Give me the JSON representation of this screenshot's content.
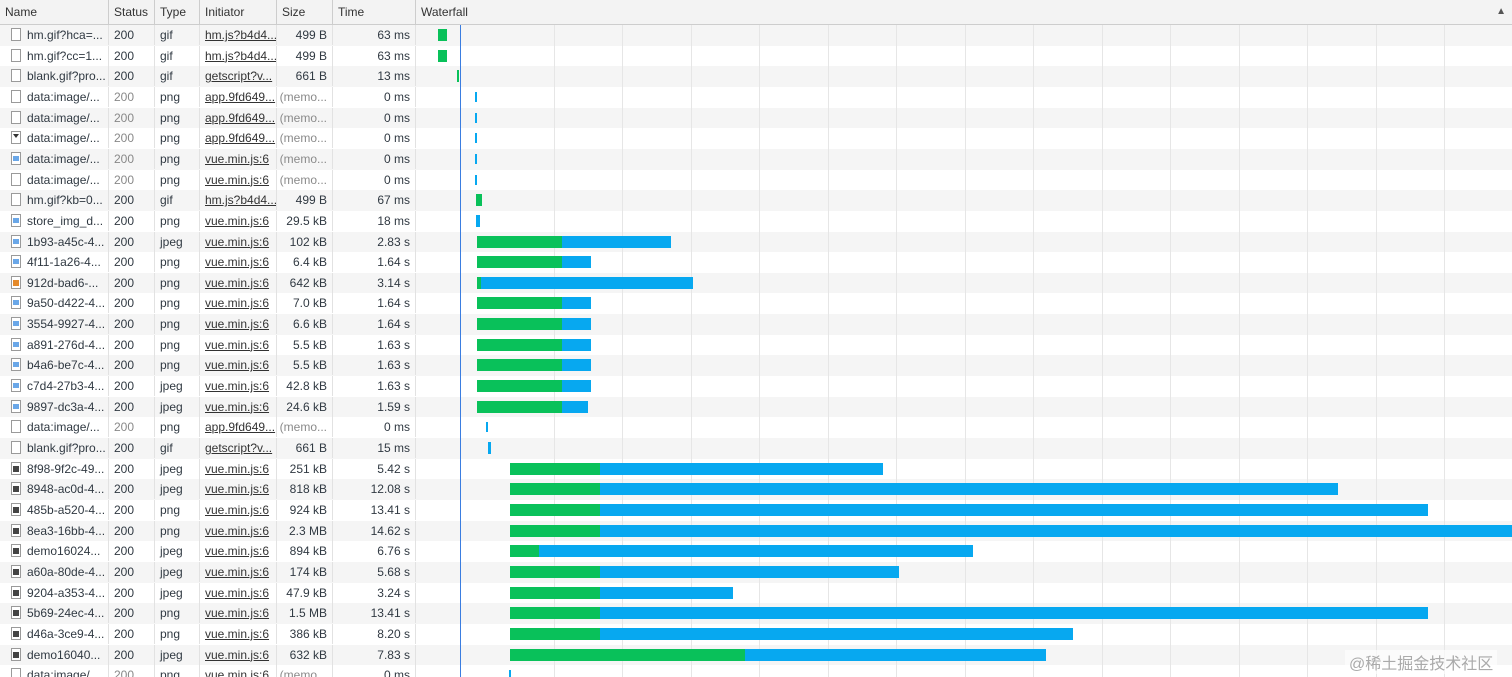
{
  "columns": {
    "name": "Name",
    "status": "Status",
    "type": "Type",
    "initiator": "Initiator",
    "size": "Size",
    "time": "Time",
    "waterfall": "Waterfall"
  },
  "watermark": "@稀土掘金技术社区",
  "colors": {
    "waiting": "#09c15a",
    "download": "#07a8f0",
    "dcl_line": "#3a7de0"
  },
  "rows": [
    {
      "name": "hm.gif?hca=...",
      "status": "200",
      "type": "gif",
      "initiator": "hm.js?b4d4...",
      "size": "499 B",
      "time": "63 ms",
      "icon": "file-icon",
      "wait": [
        0.02,
        0.028
      ],
      "dl": null
    },
    {
      "name": "hm.gif?cc=1...",
      "status": "200",
      "type": "gif",
      "initiator": "hm.js?b4d4...",
      "size": "499 B",
      "time": "63 ms",
      "icon": "file-icon",
      "wait": [
        0.02,
        0.028
      ],
      "dl": null
    },
    {
      "name": "blank.gif?pro...",
      "status": "200",
      "type": "gif",
      "initiator": "getscript?v...",
      "size": "661 B",
      "time": "13 ms",
      "icon": "file-icon",
      "wait": [
        0.037,
        0.039
      ],
      "dl": null
    },
    {
      "name": "data:image/...",
      "status": "200",
      "type": "png",
      "initiator": "app.9fd649...",
      "size": "(memo...",
      "time": "0 ms",
      "icon": "file-icon",
      "tick": 0.054
    },
    {
      "name": "data:image/...",
      "status": "200",
      "type": "png",
      "initiator": "app.9fd649...",
      "size": "(memo...",
      "time": "0 ms",
      "icon": "file-icon",
      "tick": 0.054
    },
    {
      "name": "data:image/...",
      "status": "200",
      "type": "png",
      "initiator": "app.9fd649...",
      "size": "(memo...",
      "time": "0 ms",
      "icon": "arrow-file-icon",
      "tick": 0.054
    },
    {
      "name": "data:image/...",
      "status": "200",
      "type": "png",
      "initiator": "vue.min.js:6",
      "size": "(memo...",
      "time": "0 ms",
      "icon": "image-file-icon",
      "tick": 0.054
    },
    {
      "name": "data:image/...",
      "status": "200",
      "type": "png",
      "initiator": "vue.min.js:6",
      "size": "(memo...",
      "time": "0 ms",
      "icon": "file-icon",
      "tick": 0.054
    },
    {
      "name": "hm.gif?kb=0...",
      "status": "200",
      "type": "gif",
      "initiator": "hm.js?b4d4...",
      "size": "499 B",
      "time": "67 ms",
      "icon": "file-icon",
      "wait": [
        0.055,
        0.06
      ],
      "dl": null
    },
    {
      "name": "store_img_d...",
      "status": "200",
      "type": "png",
      "initiator": "vue.min.js:6",
      "size": "29.5 kB",
      "time": "18 ms",
      "icon": "image-file-icon",
      "wait": null,
      "dl": [
        0.055,
        0.058
      ]
    },
    {
      "name": "1b93-a45c-4...",
      "status": "200",
      "type": "jpeg",
      "initiator": "vue.min.js:6",
      "size": "102 kB",
      "time": "2.83 s",
      "icon": "image-file-icon",
      "wait": [
        0.056,
        0.133
      ],
      "dl": [
        0.133,
        0.233
      ]
    },
    {
      "name": "4f11-1a26-4...",
      "status": "200",
      "type": "png",
      "initiator": "vue.min.js:6",
      "size": "6.4 kB",
      "time": "1.64 s",
      "icon": "image-file-icon",
      "wait": [
        0.056,
        0.133
      ],
      "dl": [
        0.133,
        0.16
      ]
    },
    {
      "name": "912d-bad6-...",
      "status": "200",
      "type": "png",
      "initiator": "vue.min.js:6",
      "size": "642 kB",
      "time": "3.14 s",
      "icon": "orange-file-icon",
      "wait": [
        0.056,
        0.059
      ],
      "dl": [
        0.059,
        0.253
      ]
    },
    {
      "name": "9a50-d422-4...",
      "status": "200",
      "type": "png",
      "initiator": "vue.min.js:6",
      "size": "7.0 kB",
      "time": "1.64 s",
      "icon": "image-file-icon",
      "wait": [
        0.056,
        0.133
      ],
      "dl": [
        0.133,
        0.16
      ]
    },
    {
      "name": "3554-9927-4...",
      "status": "200",
      "type": "png",
      "initiator": "vue.min.js:6",
      "size": "6.6 kB",
      "time": "1.64 s",
      "icon": "image-file-icon",
      "wait": [
        0.056,
        0.133
      ],
      "dl": [
        0.133,
        0.16
      ]
    },
    {
      "name": "a891-276d-4...",
      "status": "200",
      "type": "png",
      "initiator": "vue.min.js:6",
      "size": "5.5 kB",
      "time": "1.63 s",
      "icon": "image-file-icon",
      "wait": [
        0.056,
        0.133
      ],
      "dl": [
        0.133,
        0.16
      ]
    },
    {
      "name": "b4a6-be7c-4...",
      "status": "200",
      "type": "png",
      "initiator": "vue.min.js:6",
      "size": "5.5 kB",
      "time": "1.63 s",
      "icon": "image-file-icon",
      "wait": [
        0.056,
        0.133
      ],
      "dl": [
        0.133,
        0.16
      ]
    },
    {
      "name": "c7d4-27b3-4...",
      "status": "200",
      "type": "jpeg",
      "initiator": "vue.min.js:6",
      "size": "42.8 kB",
      "time": "1.63 s",
      "icon": "image-file-icon",
      "wait": [
        0.056,
        0.133
      ],
      "dl": [
        0.133,
        0.16
      ]
    },
    {
      "name": "9897-dc3a-4...",
      "status": "200",
      "type": "jpeg",
      "initiator": "vue.min.js:6",
      "size": "24.6 kB",
      "time": "1.59 s",
      "icon": "image-file-icon",
      "wait": [
        0.056,
        0.133
      ],
      "dl": [
        0.133,
        0.157
      ]
    },
    {
      "name": "data:image/...",
      "status": "200",
      "type": "png",
      "initiator": "app.9fd649...",
      "size": "(memo...",
      "time": "0 ms",
      "icon": "file-icon",
      "tick": 0.064
    },
    {
      "name": "blank.gif?pro...",
      "status": "200",
      "type": "gif",
      "initiator": "getscript?v...",
      "size": "661 B",
      "time": "15 ms",
      "icon": "file-icon",
      "wait": null,
      "dl": [
        0.066,
        0.068
      ]
    },
    {
      "name": "8f98-9f2c-49...",
      "status": "200",
      "type": "jpeg",
      "initiator": "vue.min.js:6",
      "size": "251 kB",
      "time": "5.42 s",
      "icon": "dark-file-icon",
      "wait": [
        0.086,
        0.168
      ],
      "dl": [
        0.168,
        0.426
      ]
    },
    {
      "name": "8948-ac0d-4...",
      "status": "200",
      "type": "jpeg",
      "initiator": "vue.min.js:6",
      "size": "818 kB",
      "time": "12.08 s",
      "icon": "dark-file-icon",
      "wait": [
        0.086,
        0.168
      ],
      "dl": [
        0.168,
        0.841
      ]
    },
    {
      "name": "485b-a520-4...",
      "status": "200",
      "type": "png",
      "initiator": "vue.min.js:6",
      "size": "924 kB",
      "time": "13.41 s",
      "icon": "dark-file-icon",
      "wait": [
        0.086,
        0.168
      ],
      "dl": [
        0.168,
        0.923
      ]
    },
    {
      "name": "8ea3-16bb-4...",
      "status": "200",
      "type": "png",
      "initiator": "vue.min.js:6",
      "size": "2.3 MB",
      "time": "14.62 s",
      "icon": "dark-file-icon",
      "wait": [
        0.086,
        0.168
      ],
      "dl": [
        0.168,
        1.0
      ]
    },
    {
      "name": "demo16024...",
      "status": "200",
      "type": "jpeg",
      "initiator": "vue.min.js:6",
      "size": "894 kB",
      "time": "6.76 s",
      "icon": "dark-file-icon",
      "wait": [
        0.086,
        0.112
      ],
      "dl": [
        0.112,
        0.508
      ]
    },
    {
      "name": "a60a-80de-4...",
      "status": "200",
      "type": "jpeg",
      "initiator": "vue.min.js:6",
      "size": "174 kB",
      "time": "5.68 s",
      "icon": "dark-file-icon",
      "wait": [
        0.086,
        0.168
      ],
      "dl": [
        0.168,
        0.441
      ]
    },
    {
      "name": "9204-a353-4...",
      "status": "200",
      "type": "jpeg",
      "initiator": "vue.min.js:6",
      "size": "47.9 kB",
      "time": "3.24 s",
      "icon": "dark-file-icon",
      "wait": [
        0.086,
        0.168
      ],
      "dl": [
        0.168,
        0.289
      ]
    },
    {
      "name": "5b69-24ec-4...",
      "status": "200",
      "type": "png",
      "initiator": "vue.min.js:6",
      "size": "1.5 MB",
      "time": "13.41 s",
      "icon": "dark-file-icon",
      "wait": [
        0.086,
        0.168
      ],
      "dl": [
        0.168,
        0.923
      ]
    },
    {
      "name": "d46a-3ce9-4...",
      "status": "200",
      "type": "png",
      "initiator": "vue.min.js:6",
      "size": "386 kB",
      "time": "8.20 s",
      "icon": "dark-file-icon",
      "wait": [
        0.086,
        0.168
      ],
      "dl": [
        0.168,
        0.599
      ]
    },
    {
      "name": "demo16040...",
      "status": "200",
      "type": "jpeg",
      "initiator": "vue.min.js:6",
      "size": "632 kB",
      "time": "7.83 s",
      "icon": "dark-file-icon",
      "wait": [
        0.086,
        0.3
      ],
      "dl": [
        0.3,
        0.575
      ]
    },
    {
      "name": "data:image/...",
      "status": "200",
      "type": "png",
      "initiator": "vue.min.js:6",
      "size": "(memo...",
      "time": "0 ms",
      "icon": "file-icon",
      "tick": 0.085
    }
  ]
}
